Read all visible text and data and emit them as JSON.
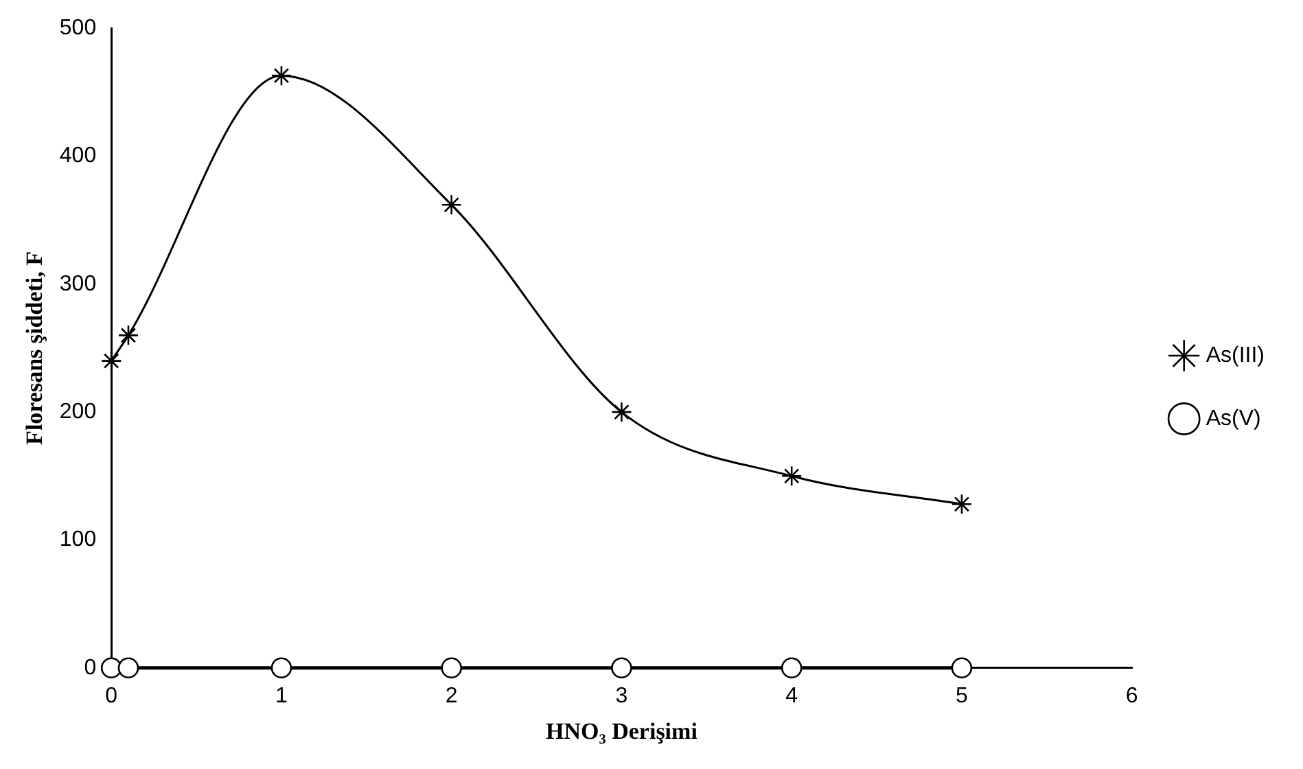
{
  "chart_data": {
    "type": "line",
    "xlabel": "HNO₃ Derişimi",
    "ylabel": "Floresans şiddeti, F",
    "xlim": [
      0,
      6
    ],
    "xticks": [
      0,
      1,
      2,
      3,
      4,
      5,
      6
    ],
    "ylim": [
      0,
      500
    ],
    "yticks": [
      0,
      100,
      200,
      300,
      400,
      500
    ],
    "grid": false,
    "legend": "right",
    "series": [
      {
        "name": "As(III)",
        "color": "#000000",
        "marker": "cross",
        "x": [
          0,
          0.1,
          1,
          2,
          3,
          4,
          5
        ],
        "values": [
          240,
          260,
          463,
          362,
          200,
          150,
          128
        ]
      },
      {
        "name": "As(V)",
        "color": "#000000",
        "marker": "circle",
        "x": [
          0,
          0.1,
          1,
          2,
          3,
          4,
          5
        ],
        "values": [
          0,
          0,
          0,
          0,
          0,
          0,
          0
        ]
      }
    ]
  }
}
